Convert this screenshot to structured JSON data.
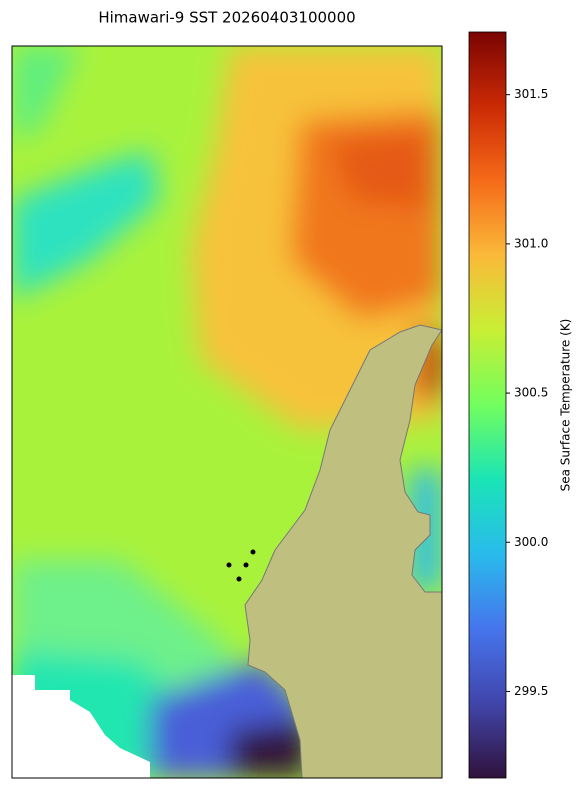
{
  "chart_data": {
    "type": "colorbar",
    "title": "Himawari-9 SST 20260403100000",
    "colorbar_label": "Sea Surface Temperature (K)",
    "ylim": [
      299.21,
      301.71
    ],
    "yticks": [
      299.5,
      {
        "value": 300,
        "label": "300.0"
      },
      300.5,
      {
        "value": 301,
        "label": "301.0"
      },
      301.5
    ]
  }
}
